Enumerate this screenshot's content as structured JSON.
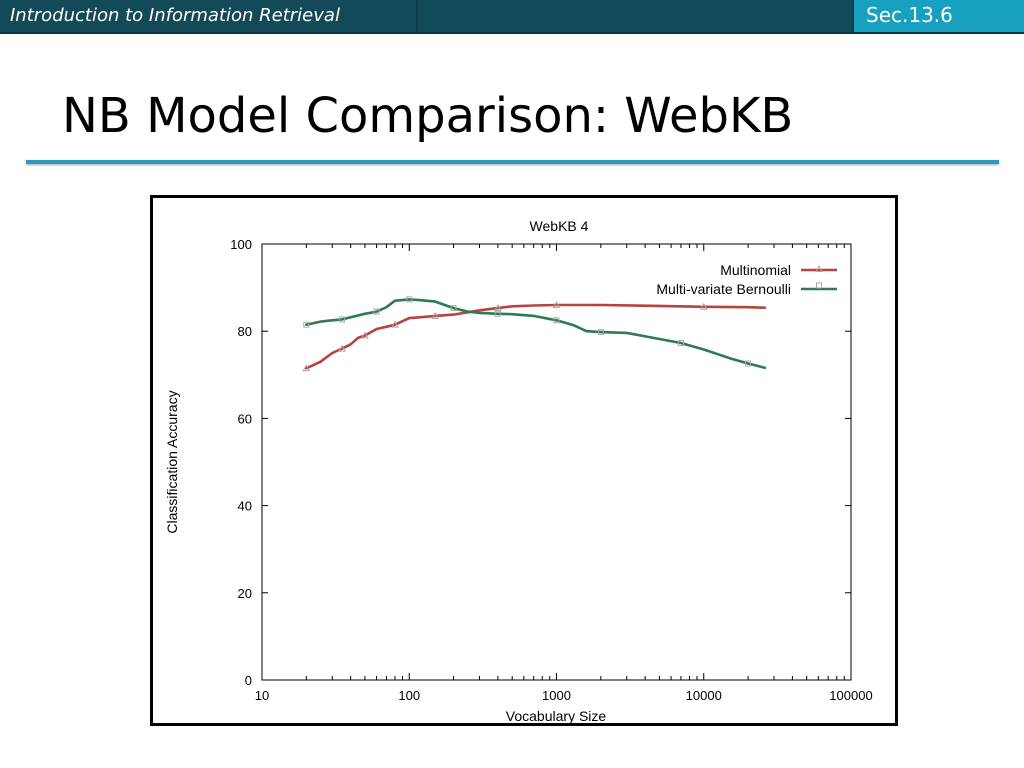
{
  "header": {
    "course_title": "Introduction to Information Retrieval",
    "section": "Sec.13.6"
  },
  "slide": {
    "title": "NB Model Comparison: WebKB"
  },
  "chart_data": {
    "type": "line",
    "title": "WebKB 4",
    "xlabel": "Vocabulary Size",
    "ylabel": "Classification Accuracy",
    "xscale": "log",
    "xlim": [
      10,
      100000
    ],
    "ylim": [
      0,
      100
    ],
    "x_ticks": [
      "10",
      "100",
      "1000",
      "10000",
      "100000"
    ],
    "y_ticks": [
      "0",
      "20",
      "40",
      "60",
      "80",
      "100"
    ],
    "grid": false,
    "legend": "top-right",
    "series": [
      {
        "name": "Multinomial",
        "color": "#b5433f",
        "x": [
          20,
          25,
          30,
          35,
          40,
          45,
          50,
          60,
          70,
          80,
          100,
          120,
          150,
          200,
          300,
          400,
          500,
          700,
          1000,
          2000,
          5000,
          10000,
          20000,
          26000
        ],
        "y": [
          71.5,
          73,
          75,
          76,
          77,
          78.5,
          79,
          80.5,
          81,
          81.5,
          83,
          83.2,
          83.5,
          83.8,
          84.8,
          85.3,
          85.7,
          85.9,
          86,
          86,
          85.8,
          85.6,
          85.5,
          85.4
        ]
      },
      {
        "name": "Multi-variate Bernoulli",
        "color": "#2d7a55",
        "x": [
          20,
          25,
          30,
          35,
          40,
          50,
          60,
          70,
          80,
          100,
          120,
          150,
          200,
          250,
          300,
          400,
          500,
          700,
          1000,
          1300,
          1600,
          2000,
          3000,
          5000,
          7000,
          10000,
          15000,
          20000,
          26000
        ],
        "y": [
          81.5,
          82.2,
          82.5,
          82.7,
          83.2,
          84,
          84.5,
          85.5,
          87,
          87.3,
          87.1,
          86.8,
          85.3,
          84.5,
          84.2,
          84,
          83.9,
          83.5,
          82.5,
          81.4,
          80,
          79.8,
          79.6,
          78.2,
          77.3,
          75.8,
          73.8,
          72.6,
          71.6
        ]
      }
    ]
  }
}
